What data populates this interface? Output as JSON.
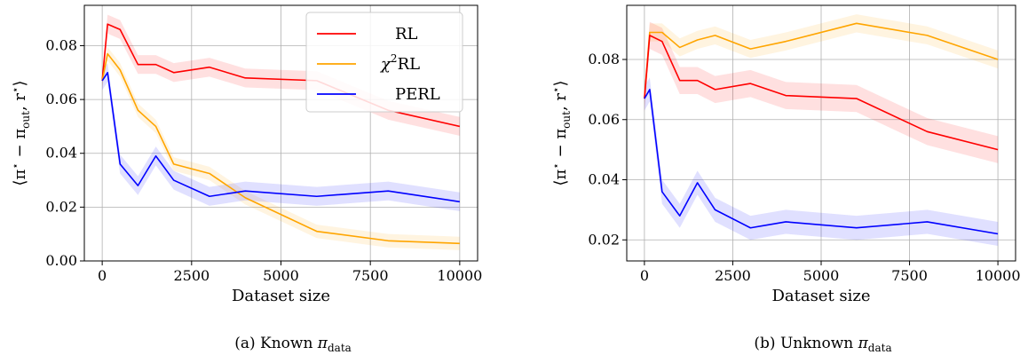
{
  "chart_data": [
    {
      "type": "line",
      "caption_prefix": "(a) Known ",
      "caption_pi": "π",
      "caption_sub": "data",
      "xlabel": "Dataset size",
      "ylabel": "⟨π* − π_out, r*⟩",
      "xlim": [
        -500,
        10500
      ],
      "ylim": [
        0.0,
        0.095
      ],
      "xticks": [
        0,
        2500,
        5000,
        7500,
        10000
      ],
      "yticks": [
        0.0,
        0.02,
        0.04,
        0.06,
        0.08
      ],
      "ytick_labels": [
        "0.00",
        "0.02",
        "0.04",
        "0.06",
        "0.08"
      ],
      "grid": true,
      "legend_position": "top-right",
      "series": [
        {
          "name": "RL",
          "color": "#ff0000",
          "band": 0.0035,
          "x": [
            0,
            150,
            500,
            1000,
            1500,
            2000,
            3000,
            4000,
            6000,
            8000,
            10000
          ],
          "y": [
            0.067,
            0.088,
            0.086,
            0.073,
            0.073,
            0.07,
            0.072,
            0.068,
            0.067,
            0.056,
            0.05
          ]
        },
        {
          "name": "χ²RL",
          "color": "#ffa500",
          "band": 0.0025,
          "x": [
            0,
            150,
            500,
            1000,
            1500,
            2000,
            3000,
            4000,
            6000,
            8000,
            10000
          ],
          "y": [
            0.067,
            0.077,
            0.071,
            0.056,
            0.05,
            0.036,
            0.0325,
            0.0235,
            0.011,
            0.0075,
            0.0065
          ]
        },
        {
          "name": "PERL",
          "color": "#0000ff",
          "band": 0.0035,
          "x": [
            0,
            150,
            500,
            1000,
            1500,
            2000,
            3000,
            4000,
            6000,
            8000,
            10000
          ],
          "y": [
            0.067,
            0.07,
            0.036,
            0.028,
            0.039,
            0.03,
            0.024,
            0.026,
            0.024,
            0.026,
            0.022
          ]
        }
      ]
    },
    {
      "type": "line",
      "caption_prefix": "(b) Unknown ",
      "caption_pi": "π",
      "caption_sub": "data",
      "xlabel": "Dataset size",
      "ylabel": "⟨π* − π_out, r*⟩",
      "xlim": [
        -500,
        10500
      ],
      "ylim": [
        0.013,
        0.098
      ],
      "xticks": [
        0,
        2500,
        5000,
        7500,
        10000
      ],
      "yticks": [
        0.02,
        0.04,
        0.06,
        0.08
      ],
      "ytick_labels": [
        "0.02",
        "0.04",
        "0.06",
        "0.08"
      ],
      "grid": true,
      "series": [
        {
          "name": "χ²RL",
          "color": "#ffa500",
          "band": 0.003,
          "x": [
            0,
            150,
            500,
            1000,
            1500,
            2000,
            3000,
            4000,
            6000,
            8000,
            10000
          ],
          "y": [
            0.067,
            0.089,
            0.089,
            0.084,
            0.0865,
            0.088,
            0.0835,
            0.086,
            0.092,
            0.088,
            0.08
          ]
        },
        {
          "name": "RL",
          "color": "#ff0000",
          "band": 0.0045,
          "x": [
            0,
            150,
            500,
            1000,
            1500,
            2000,
            3000,
            4000,
            6000,
            8000,
            10000
          ],
          "y": [
            0.067,
            0.088,
            0.086,
            0.073,
            0.073,
            0.07,
            0.072,
            0.068,
            0.067,
            0.056,
            0.05
          ]
        },
        {
          "name": "PERL",
          "color": "#0000ff",
          "band": 0.004,
          "x": [
            0,
            150,
            500,
            1000,
            1500,
            2000,
            3000,
            4000,
            6000,
            8000,
            10000
          ],
          "y": [
            0.067,
            0.07,
            0.036,
            0.028,
            0.039,
            0.03,
            0.024,
            0.026,
            0.024,
            0.026,
            0.022
          ]
        }
      ]
    }
  ]
}
